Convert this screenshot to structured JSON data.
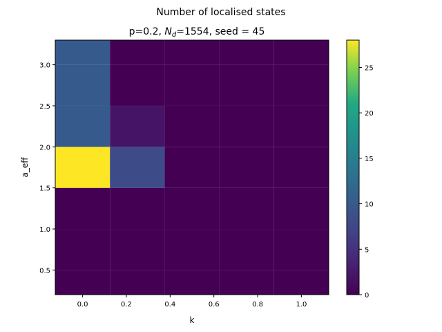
{
  "figure": {
    "suptitle": "Number of localised states",
    "title_prefix": "p=0.2, ",
    "title_n": "N",
    "title_sub": "d",
    "title_suffix": "=1554, seed = 45"
  },
  "chart_data": {
    "type": "heatmap",
    "xlabel": "k",
    "ylabel": "a_eff",
    "x_centers": [
      0.0,
      0.25,
      0.5,
      0.75,
      1.0
    ],
    "y_centers": [
      0.25,
      0.75,
      1.25,
      1.75,
      2.25,
      2.75,
      3.25
    ],
    "xlim": [
      -0.125,
      1.125
    ],
    "ylim": [
      0.2,
      3.3
    ],
    "x_ticks": [
      0.0,
      0.2,
      0.4,
      0.6,
      0.8,
      1.0
    ],
    "x_tick_labels": [
      "0.0",
      "0.2",
      "0.4",
      "0.6",
      "0.8",
      "1.0"
    ],
    "y_ticks": [
      0.5,
      1.0,
      1.5,
      2.0,
      2.5,
      3.0
    ],
    "y_tick_labels": [
      "0.5",
      "1.0",
      "1.5",
      "2.0",
      "2.5",
      "3.0"
    ],
    "values": [
      [
        0,
        0,
        0,
        0,
        0
      ],
      [
        0,
        0,
        0,
        0,
        0
      ],
      [
        0,
        0,
        0,
        0,
        0
      ],
      [
        28,
        8,
        0,
        0,
        0
      ],
      [
        10,
        2,
        0,
        0,
        0
      ],
      [
        10,
        0,
        0,
        0,
        0
      ],
      [
        10,
        0,
        0,
        0,
        0
      ]
    ],
    "colormap": "viridis",
    "colorbar": {
      "min": 0,
      "max": 28,
      "ticks": [
        0,
        5,
        10,
        15,
        20,
        25
      ],
      "tick_labels": [
        "0",
        "5",
        "10",
        "15",
        "20",
        "25"
      ]
    },
    "grid": false
  }
}
